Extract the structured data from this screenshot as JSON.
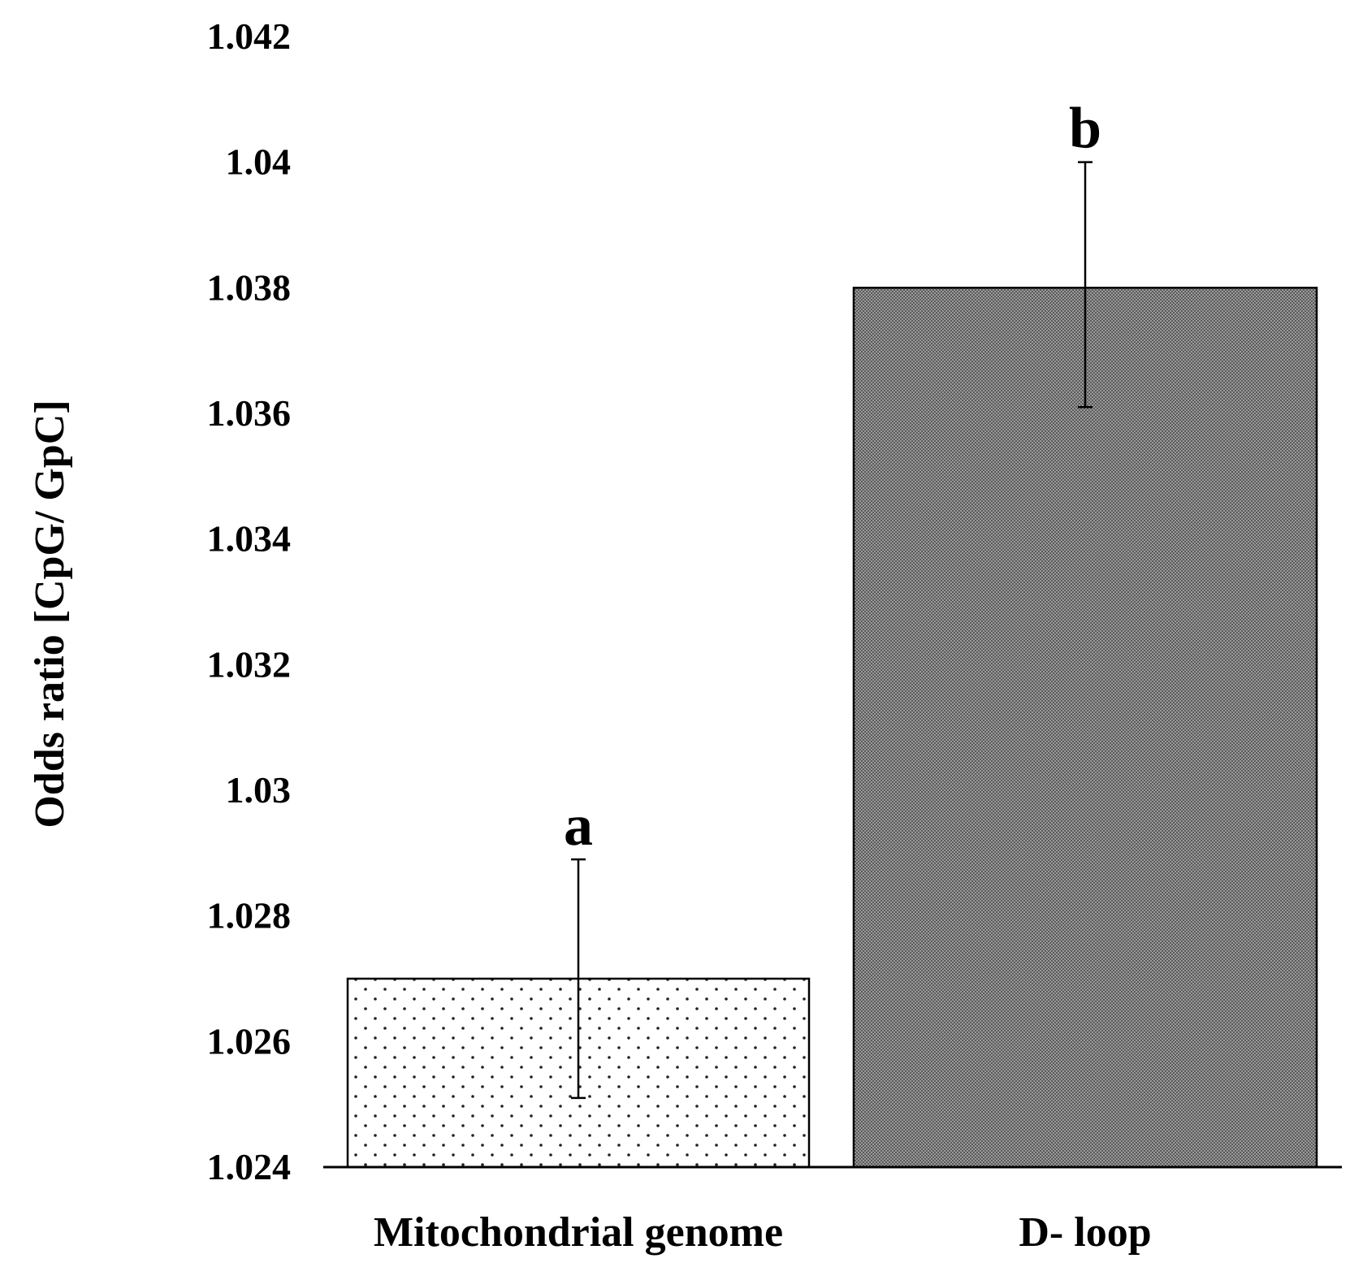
{
  "chart_data": {
    "type": "bar",
    "title": "",
    "xlabel": "",
    "ylabel": "Odds ratio [CpG/ GpC]",
    "ylim": [
      1.024,
      1.042
    ],
    "yticks": [
      "1.024",
      "1.026",
      "1.028",
      "1.03",
      "1.032",
      "1.034",
      "1.036",
      "1.038",
      "1.04",
      "1.042"
    ],
    "grid": false,
    "categories": [
      "Mitochondrial genome",
      "D- loop"
    ],
    "values": [
      1.027,
      1.038
    ],
    "error_bars": [
      {
        "low": 1.0251,
        "high": 1.0289
      },
      {
        "low": 1.0361,
        "high": 1.04
      }
    ],
    "significance_labels": [
      "a",
      "b"
    ],
    "bar_fills": [
      "dotted-light",
      "dense-dark-gray"
    ],
    "colors": {
      "bar_dark": "#6f6f6f",
      "bar_light": "#ffffff",
      "ink": "#000000"
    }
  }
}
